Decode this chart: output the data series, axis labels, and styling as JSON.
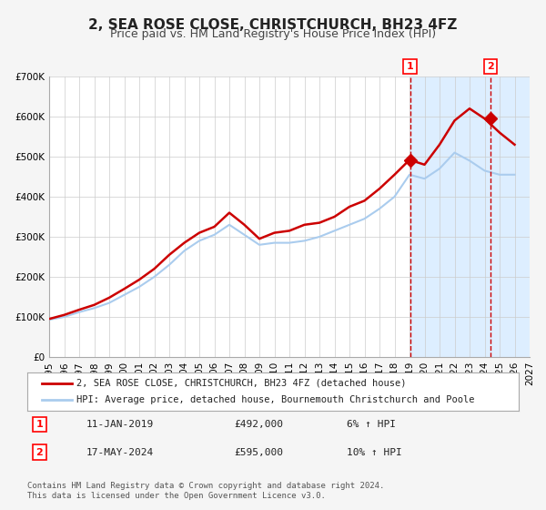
{
  "title": "2, SEA ROSE CLOSE, CHRISTCHURCH, BH23 4FZ",
  "subtitle": "Price paid vs. HM Land Registry's House Price Index (HPI)",
  "xlabel": "",
  "ylabel": "",
  "ylim": [
    0,
    700000
  ],
  "xlim_start": 1995,
  "xlim_end": 2027,
  "yticks": [
    0,
    100000,
    200000,
    300000,
    400000,
    500000,
    600000,
    700000
  ],
  "ytick_labels": [
    "£0",
    "£100K",
    "£200K",
    "£300K",
    "£400K",
    "£500K",
    "£600K",
    "£700K"
  ],
  "xticks": [
    1995,
    1996,
    1997,
    1998,
    1999,
    2000,
    2001,
    2002,
    2003,
    2004,
    2005,
    2006,
    2007,
    2008,
    2009,
    2010,
    2011,
    2012,
    2013,
    2014,
    2015,
    2016,
    2017,
    2018,
    2019,
    2020,
    2021,
    2022,
    2023,
    2024,
    2025,
    2026,
    2027
  ],
  "red_line_color": "#cc0000",
  "blue_line_color": "#aaccee",
  "marker1_x": 2019.04,
  "marker1_y": 492000,
  "marker2_x": 2024.38,
  "marker2_y": 595000,
  "vline1_x": 2019.04,
  "vline2_x": 2024.38,
  "shade_start": 2019.04,
  "shade_end": 2027,
  "legend_label_red": "2, SEA ROSE CLOSE, CHRISTCHURCH, BH23 4FZ (detached house)",
  "legend_label_blue": "HPI: Average price, detached house, Bournemouth Christchurch and Poole",
  "annotation1_label": "1",
  "annotation2_label": "2",
  "table_row1": [
    "1",
    "11-JAN-2019",
    "£492,000",
    "6% ↑ HPI"
  ],
  "table_row2": [
    "2",
    "17-MAY-2024",
    "£595,000",
    "10% ↑ HPI"
  ],
  "footer_text": "Contains HM Land Registry data © Crown copyright and database right 2024.\nThis data is licensed under the Open Government Licence v3.0.",
  "bg_color": "#f5f5f5",
  "plot_bg_color": "#ffffff",
  "shade_color": "#ddeeff",
  "grid_color": "#cccccc",
  "title_fontsize": 11,
  "subtitle_fontsize": 9,
  "tick_fontsize": 7.5,
  "hpi_years": [
    1995,
    1996,
    1997,
    1998,
    1999,
    2000,
    2001,
    2002,
    2003,
    2004,
    2005,
    2006,
    2007,
    2008,
    2009,
    2010,
    2011,
    2012,
    2013,
    2014,
    2015,
    2016,
    2017,
    2018,
    2019,
    2020,
    2021,
    2022,
    2023,
    2024,
    2025,
    2026
  ],
  "hpi_values": [
    93000,
    100000,
    112000,
    122000,
    135000,
    155000,
    175000,
    200000,
    230000,
    265000,
    290000,
    305000,
    330000,
    305000,
    280000,
    285000,
    285000,
    290000,
    300000,
    315000,
    330000,
    345000,
    370000,
    400000,
    455000,
    445000,
    470000,
    510000,
    490000,
    465000,
    455000,
    455000
  ],
  "red_years": [
    1995,
    1996,
    1997,
    1998,
    1999,
    2000,
    2001,
    2002,
    2003,
    2004,
    2005,
    2006,
    2007,
    2008,
    2009,
    2010,
    2011,
    2012,
    2013,
    2014,
    2015,
    2016,
    2017,
    2018,
    2019,
    2020,
    2021,
    2022,
    2023,
    2024,
    2025,
    2026
  ],
  "red_values": [
    95000,
    105000,
    118000,
    130000,
    148000,
    170000,
    193000,
    220000,
    255000,
    285000,
    310000,
    325000,
    360000,
    330000,
    295000,
    310000,
    315000,
    330000,
    335000,
    350000,
    375000,
    390000,
    420000,
    455000,
    492000,
    480000,
    530000,
    590000,
    620000,
    595000,
    560000,
    530000
  ]
}
